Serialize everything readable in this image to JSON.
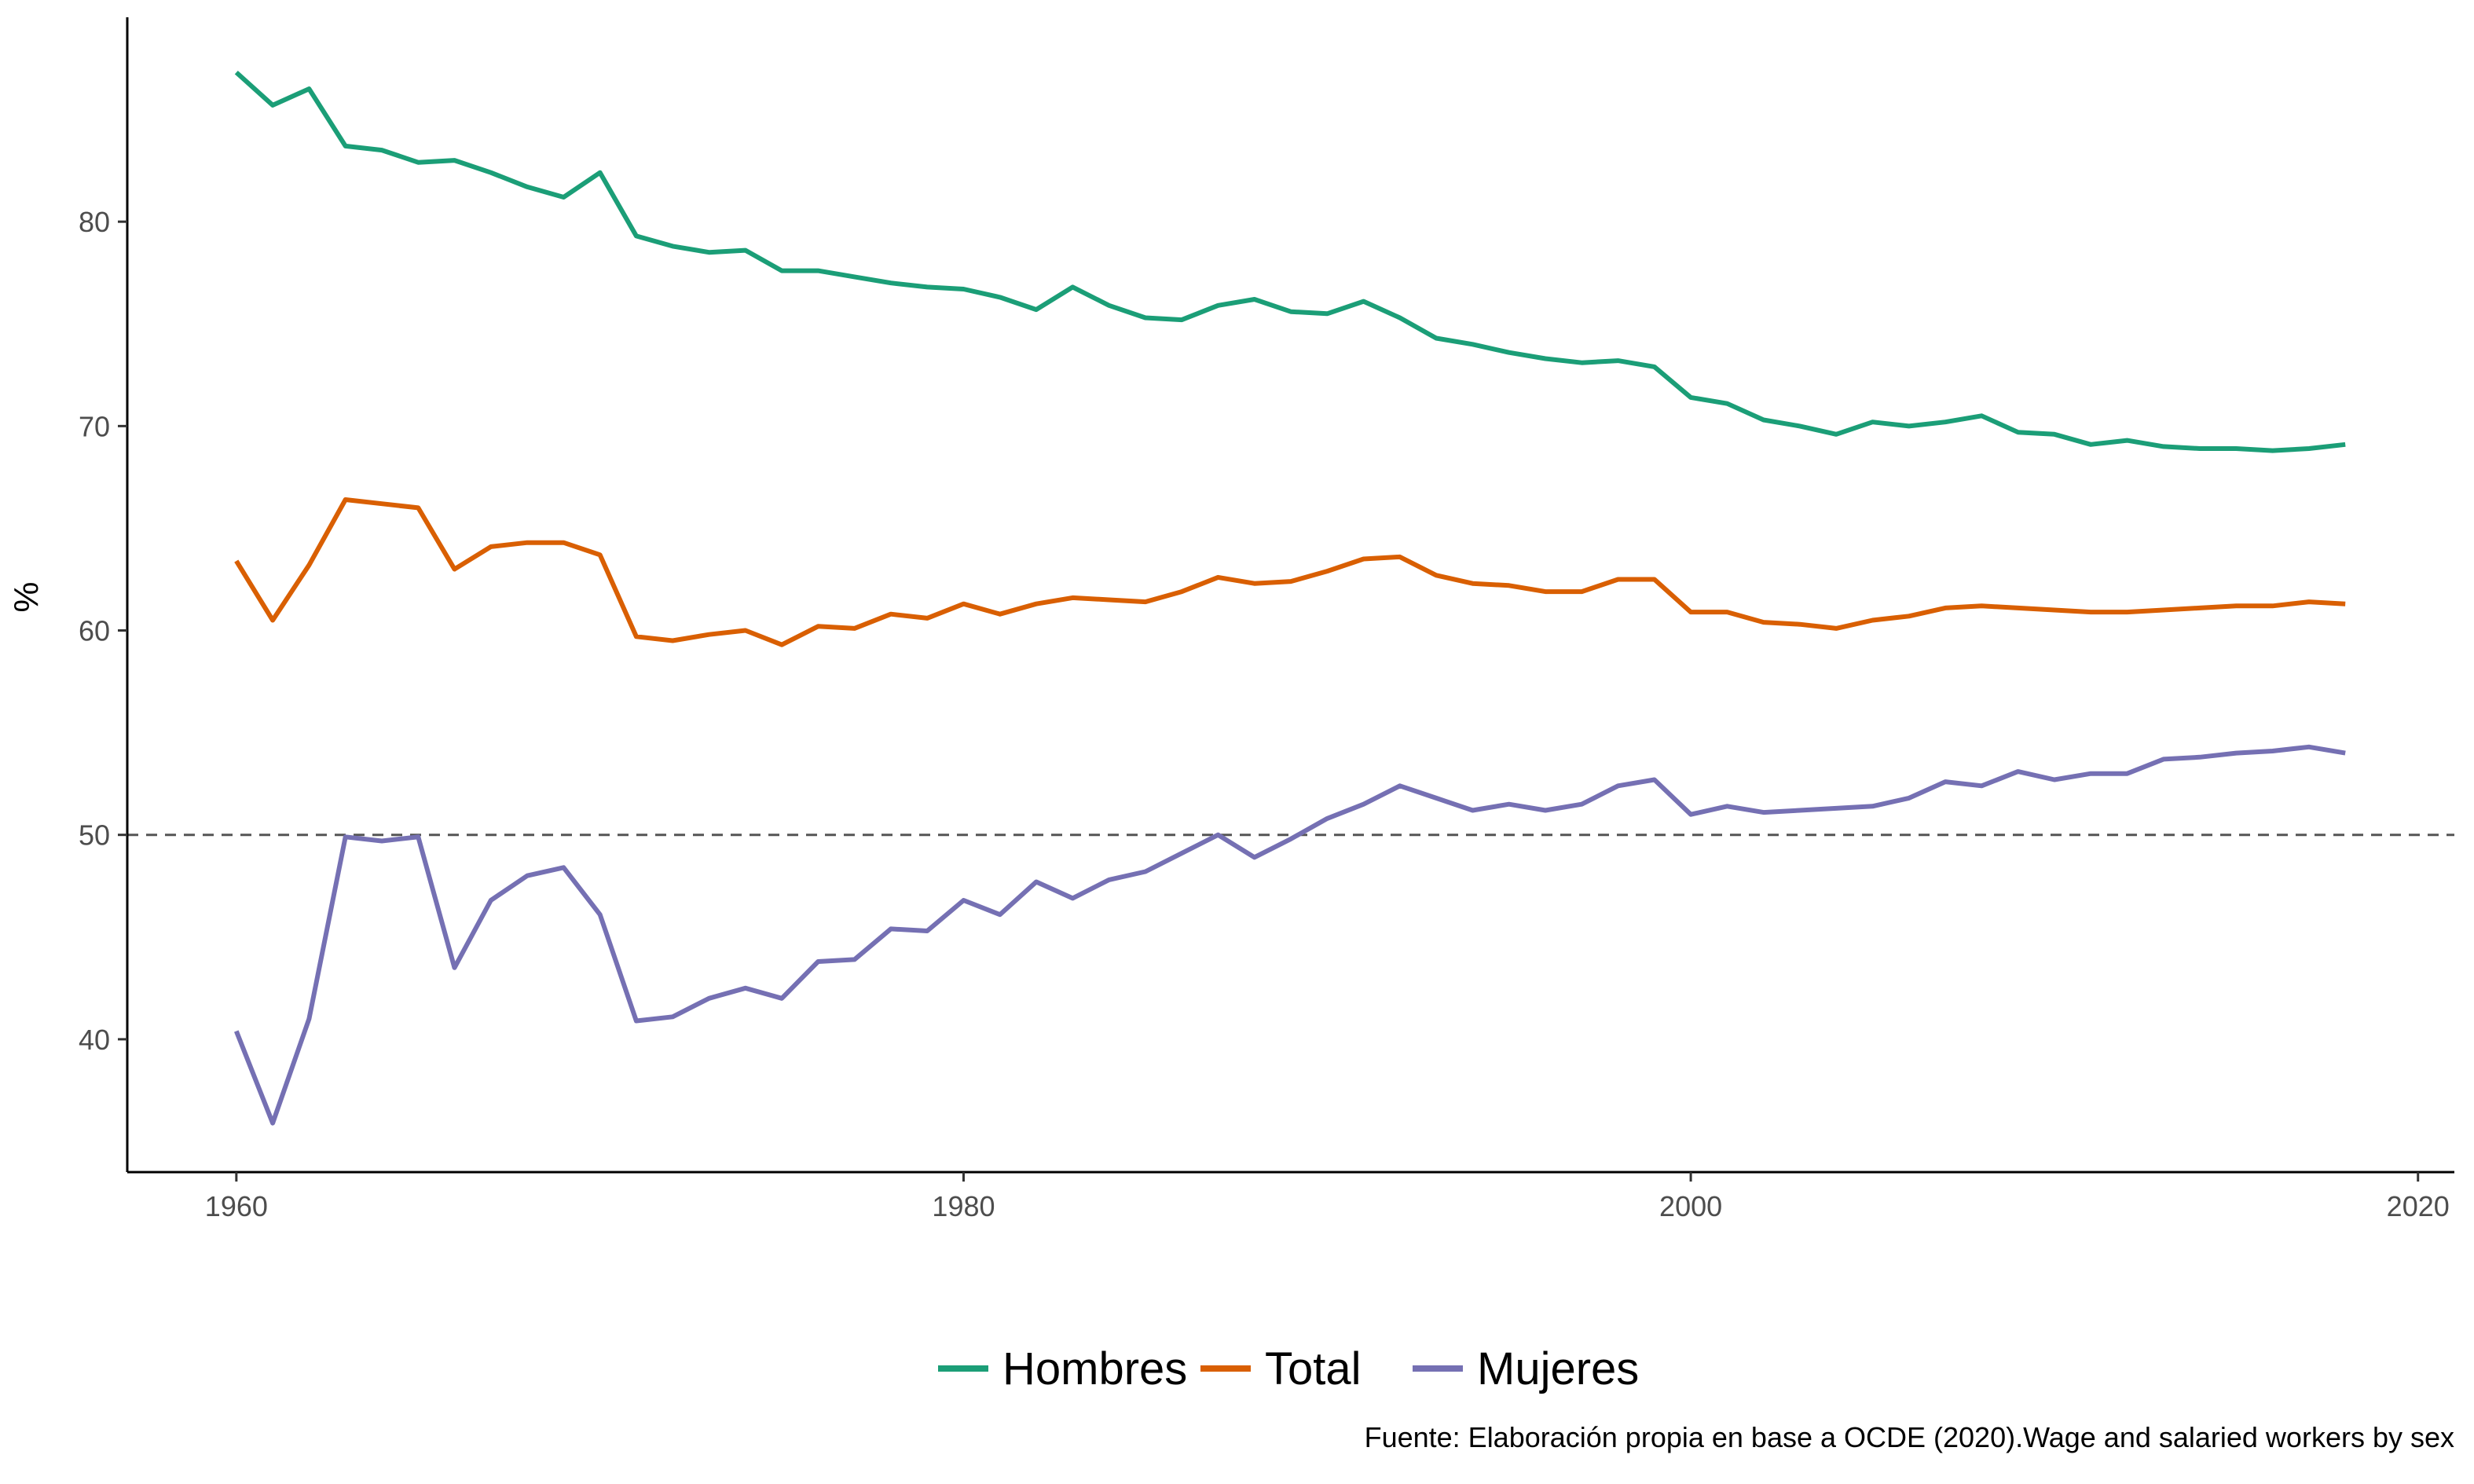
{
  "chart_data": {
    "type": "line",
    "title": "",
    "xlabel": "",
    "ylabel": "%",
    "xlim": [
      1957,
      2021
    ],
    "ylim": [
      33.5,
      90
    ],
    "x_ticks": [
      1960,
      1980,
      2000,
      2020
    ],
    "y_ticks": [
      40,
      50,
      60,
      70,
      80
    ],
    "grid": false,
    "reference_line": {
      "y": 50,
      "style": "dashed",
      "color": "#555555"
    },
    "legend_position": "bottom",
    "caption": "Fuente: Elaboración propia en base a OCDE (2020).Wage and salaried workers by sex",
    "x": [
      1960,
      1961,
      1962,
      1963,
      1964,
      1965,
      1966,
      1967,
      1968,
      1969,
      1970,
      1971,
      1972,
      1973,
      1974,
      1975,
      1976,
      1977,
      1978,
      1979,
      1980,
      1981,
      1982,
      1983,
      1984,
      1985,
      1986,
      1987,
      1988,
      1989,
      1990,
      1991,
      1992,
      1993,
      1994,
      1995,
      1996,
      1997,
      1998,
      1999,
      2000,
      2001,
      2002,
      2003,
      2004,
      2005,
      2006,
      2007,
      2008,
      2009,
      2010,
      2011,
      2012,
      2013,
      2014,
      2015,
      2016,
      2017,
      2018
    ],
    "series": [
      {
        "name": "Hombres",
        "color": "#1b9e77",
        "values": [
          87.3,
          85.7,
          86.5,
          83.7,
          83.5,
          82.9,
          83.0,
          82.4,
          81.7,
          81.2,
          82.4,
          79.3,
          78.8,
          78.5,
          78.6,
          77.6,
          77.6,
          77.3,
          77.0,
          76.8,
          76.7,
          76.3,
          75.7,
          76.8,
          75.9,
          75.3,
          75.2,
          75.9,
          76.2,
          75.6,
          75.5,
          76.1,
          75.3,
          74.3,
          74.0,
          73.6,
          73.3,
          73.1,
          73.2,
          72.9,
          71.4,
          71.1,
          70.3,
          70.0,
          69.6,
          70.2,
          70.0,
          70.2,
          70.5,
          69.7,
          69.6,
          69.1,
          69.3,
          69.0,
          68.9,
          68.9,
          68.8,
          68.9,
          69.1
        ]
      },
      {
        "name": "Total",
        "color": "#d95f02",
        "values": [
          63.4,
          60.5,
          63.2,
          66.4,
          66.2,
          66.0,
          63.0,
          64.1,
          64.3,
          64.3,
          63.7,
          59.7,
          59.5,
          59.8,
          60.0,
          59.3,
          60.2,
          60.1,
          60.8,
          60.6,
          61.3,
          60.8,
          61.3,
          61.6,
          61.5,
          61.4,
          61.9,
          62.6,
          62.3,
          62.4,
          62.9,
          63.5,
          63.6,
          62.7,
          62.3,
          62.2,
          61.9,
          61.9,
          62.5,
          62.5,
          60.9,
          60.9,
          60.4,
          60.3,
          60.1,
          60.5,
          60.7,
          61.1,
          61.2,
          61.1,
          61.0,
          60.9,
          60.9,
          61.0,
          61.1,
          61.2,
          61.2,
          61.4,
          61.3
        ]
      },
      {
        "name": "Mujeres",
        "color": "#7570b3",
        "values": [
          40.4,
          35.9,
          41.0,
          49.9,
          49.7,
          49.9,
          43.5,
          46.8,
          48.0,
          48.4,
          46.1,
          40.9,
          41.1,
          42.0,
          42.5,
          42.0,
          43.8,
          43.9,
          45.4,
          45.3,
          46.8,
          46.1,
          47.7,
          46.9,
          47.8,
          48.2,
          49.1,
          50.0,
          48.9,
          49.8,
          50.8,
          51.5,
          52.4,
          51.8,
          51.2,
          51.5,
          51.2,
          51.5,
          52.4,
          52.7,
          51.0,
          51.4,
          51.1,
          51.2,
          51.3,
          51.4,
          51.8,
          52.6,
          52.4,
          53.1,
          52.7,
          53.0,
          53.0,
          53.7,
          53.8,
          54.0,
          54.1,
          54.3,
          54.0
        ]
      }
    ]
  }
}
